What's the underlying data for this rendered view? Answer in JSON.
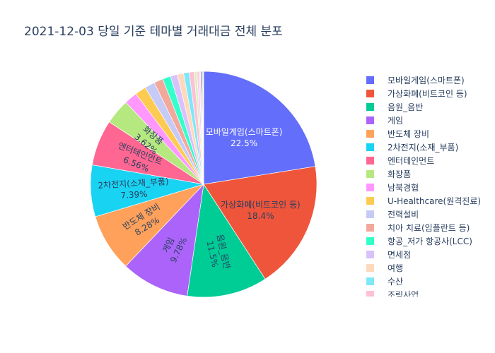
{
  "chart_data": {
    "type": "pie",
    "title": "2021-12-03 당일 기준 테마별 거래대금 전체 분포",
    "start_angle_deg": 0,
    "direction": "clockwise",
    "slices": [
      {
        "label": "모바일게임(스마트폰)",
        "value": 22.5,
        "color": "#636efa",
        "text_shown": true
      },
      {
        "label": "가상화폐(비트코인 등)",
        "value": 18.4,
        "color": "#ef553b",
        "text_shown": true
      },
      {
        "label": "음원_음반",
        "value": 11.5,
        "color": "#00cc96",
        "text_shown": true
      },
      {
        "label": "게임",
        "value": 9.78,
        "color": "#ab63fa",
        "text_shown": true
      },
      {
        "label": "반도체 장비",
        "value": 8.28,
        "color": "#ffa15a",
        "text_shown": true
      },
      {
        "label": "2차전지(소재_부품)",
        "value": 7.39,
        "color": "#19d3f3",
        "text_shown": true
      },
      {
        "label": "엔터테인먼트",
        "value": 6.56,
        "color": "#ff6692",
        "text_shown": true
      },
      {
        "label": "화장품",
        "value": 3.62,
        "color": "#b6e880",
        "text_shown": true
      },
      {
        "label": "남북경협",
        "value": 1.85,
        "color": "#ff97ff",
        "text_shown": false
      },
      {
        "label": "U-Healthcare(원격진료)",
        "value": 1.6,
        "color": "#fecb52",
        "text_shown": false
      },
      {
        "label": "전력설비",
        "value": 1.45,
        "color": "#c6caf7",
        "text_shown": false
      },
      {
        "label": "치아 치료(임플란트 등)",
        "value": 1.3,
        "color": "#f2a99b",
        "text_shown": false
      },
      {
        "label": "항공_저가 항공사(LCC)",
        "value": 1.15,
        "color": "#33ffcb",
        "text_shown": false
      },
      {
        "label": "면세점",
        "value": 1.0,
        "color": "#d9c1fb",
        "text_shown": false
      },
      {
        "label": "여행",
        "value": 0.9,
        "color": "#ffd9bd",
        "text_shown": false
      },
      {
        "label": "수산",
        "value": 0.8,
        "color": "#7ee7f8",
        "text_shown": false
      },
      {
        "label": "조림사업",
        "value": 0.7,
        "color": "#ffc0d3",
        "text_shown": false
      },
      {
        "label": "",
        "value": 0.4,
        "color": "#dbf0c0",
        "text_shown": false
      },
      {
        "label": "",
        "value": 0.3,
        "color": "#ffc2ff",
        "text_shown": false
      },
      {
        "label": "",
        "value": 0.2,
        "color": "#fee6a9",
        "text_shown": false
      },
      {
        "label": "",
        "value": 0.15,
        "color": "#636efa",
        "text_shown": false
      },
      {
        "label": "",
        "value": 0.12,
        "color": "#ef553b",
        "text_shown": false
      },
      {
        "label": "",
        "value": 0.1,
        "color": "#00cc96",
        "text_shown": false
      },
      {
        "label": "",
        "value": 0.08,
        "color": "#ab63fa",
        "text_shown": false
      }
    ],
    "legend_visible": [
      "모바일게임(스마트폰)",
      "가상화폐(비트코인 등)",
      "음원_음반",
      "게임",
      "반도체 장비",
      "2차전지(소재_부품)",
      "엔터테인먼트",
      "화장품",
      "남북경협",
      "U-Healthcare(원격진료)",
      "전력설비",
      "치아 치료(임플란트 등)",
      "항공_저가 항공사(LCC)",
      "면세점",
      "여행",
      "수산",
      "조림사업"
    ],
    "legend_placement": "right"
  }
}
